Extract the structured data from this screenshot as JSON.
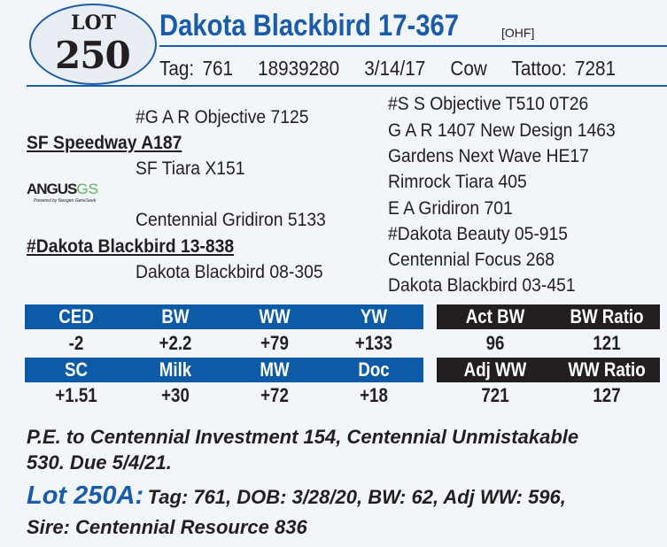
{
  "lot": {
    "word": "LOT",
    "number": "250"
  },
  "header": {
    "name": "Dakota Blackbird 17-367",
    "registry": "[OHF]",
    "tag": "Tag: 761",
    "reg_number": "18939280",
    "dob": "3/14/17",
    "sex": "Cow",
    "tattoo": "Tattoo: 7281"
  },
  "pedigree": {
    "sire": "SF Speedway A187",
    "sire_sire": "#G A R Objective 7125",
    "sire_dam": "SF Tiara X151",
    "dam": "#Dakota Blackbird 13-838",
    "dam_sire": "Centennial Gridiron 5133",
    "dam_dam": "Dakota Blackbird 08-305",
    "g1": "#S S Objective T510 0T26",
    "g2": "G A R 1407 New Design 1463",
    "g3": "Gardens Next Wave HE17",
    "g4": "Rimrock Tiara 405",
    "g5": "E A Gridiron 701",
    "g6": "#Dakota Beauty 05-915",
    "g7": "Centennial Focus 268",
    "g8": "Dakota Blackbird 03-451"
  },
  "logo": {
    "main": "ANGUS",
    "suffix": "GS",
    "tagline": "Powered by Neogen GeneSeek"
  },
  "epd": {
    "row1_headers": [
      "CED",
      "BW",
      "WW",
      "YW"
    ],
    "row1_values": [
      "-2",
      "+2.2",
      "+79",
      "+133"
    ],
    "row2_headers": [
      "SC",
      "Milk",
      "MW",
      "Doc"
    ],
    "row2_values": [
      "+1.51",
      "+30",
      "+72",
      "+18"
    ]
  },
  "perf": {
    "row1_headers": [
      "Act BW",
      "BW Ratio"
    ],
    "row1_values": [
      "96",
      "121"
    ],
    "row2_headers": [
      "Adj WW",
      "WW Ratio"
    ],
    "row2_values": [
      "721",
      "127"
    ]
  },
  "footnote": {
    "line1": "P.E. to Centennial Investment 154, Centennial Unmistakable",
    "line2": "530. Due 5/4/21.",
    "calf_label": "Lot 250A:",
    "calf_line1": "Tag: 761, DOB: 3/28/20, BW: 62, Adj WW: 596,",
    "calf_line2": "Sire: Centennial Resource 836"
  },
  "colors": {
    "brand_blue": "#1a5ca8",
    "band_blue": "#0d5aa7",
    "band_black": "#231f20",
    "angus_green": "#5cb85c"
  }
}
